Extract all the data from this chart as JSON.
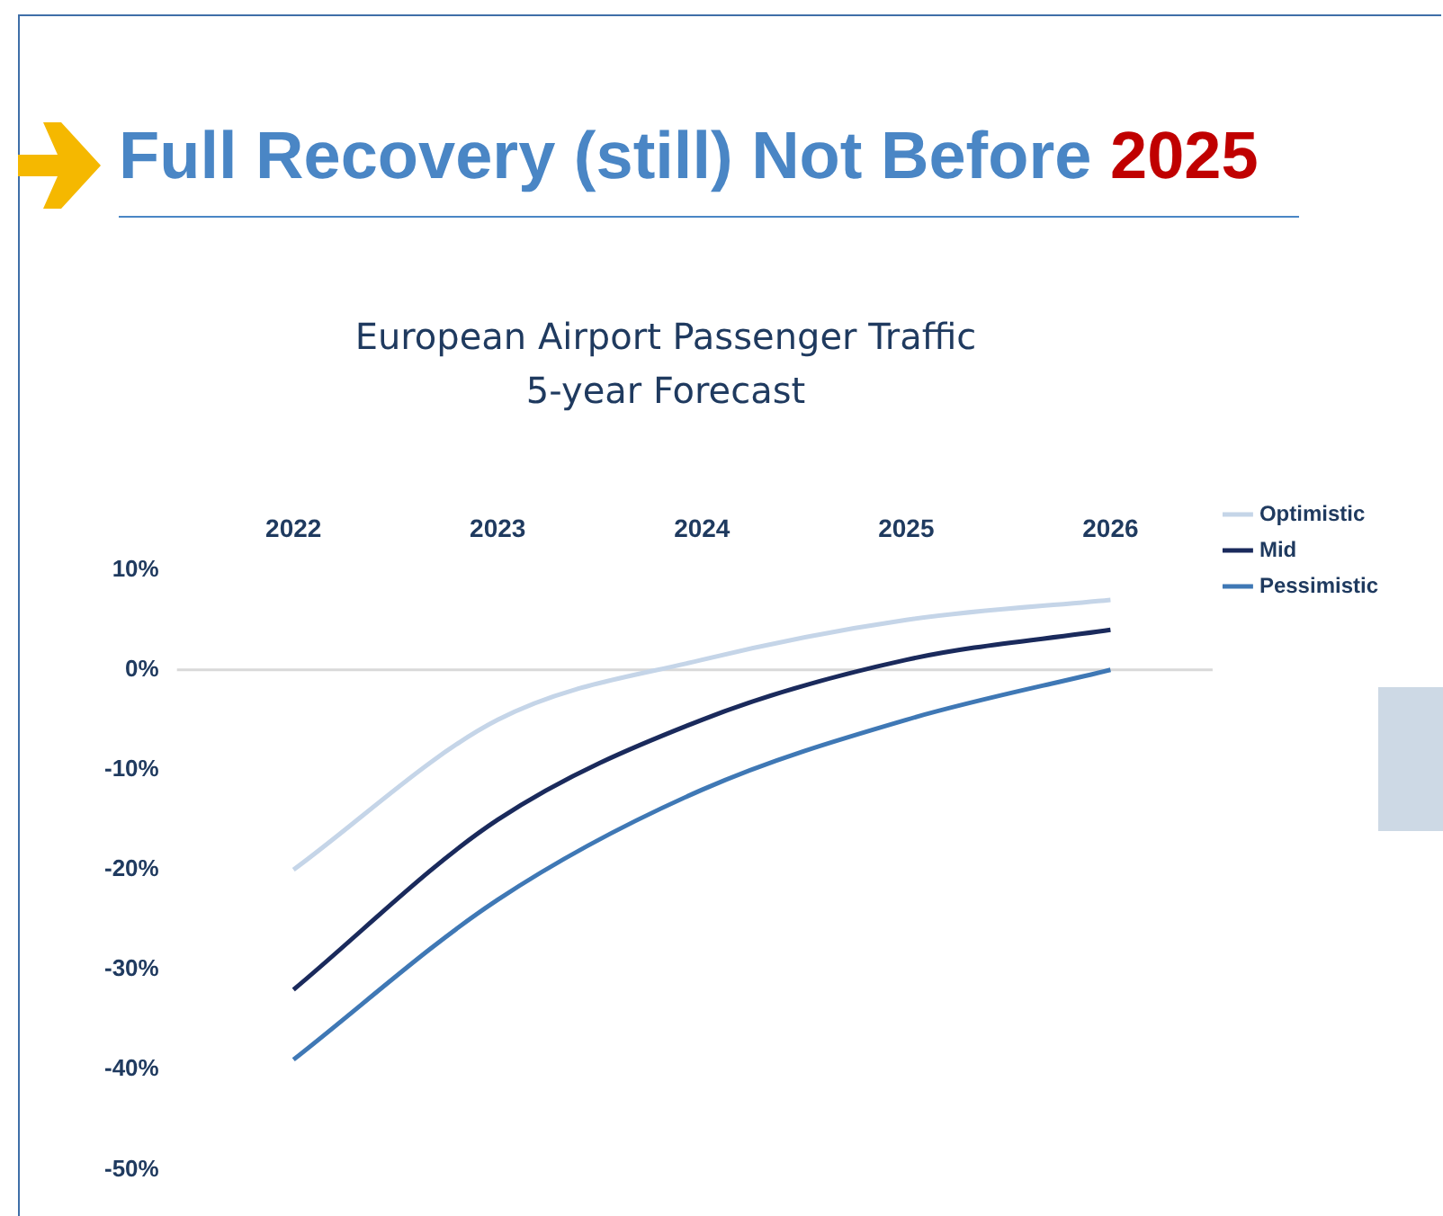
{
  "chart_data": {
    "type": "line",
    "title": "Full Recovery (still) Not Before 2025",
    "subtitle": "European Airport Passenger Traffic\n5-year Forecast",
    "categories": [
      "2022",
      "2023",
      "2024",
      "2025",
      "2026"
    ],
    "series": [
      {
        "name": "Optimistic",
        "color": "#c5d5e8",
        "values": [
          -20,
          -5,
          1,
          5,
          7
        ]
      },
      {
        "name": "Mid",
        "color": "#1a2a5c",
        "values": [
          -32,
          -15,
          -5,
          1,
          4
        ]
      },
      {
        "name": "Pessimistic",
        "color": "#3f78b5",
        "values": [
          -39,
          -23,
          -12,
          -5,
          0
        ]
      }
    ],
    "ylim": [
      -50,
      10
    ],
    "yticks": [
      {
        "value": 10,
        "label": "10%"
      },
      {
        "value": 0,
        "label": "0%"
      },
      {
        "value": -10,
        "label": "-10%"
      },
      {
        "value": -20,
        "label": "-20%"
      },
      {
        "value": -30,
        "label": "-30%"
      },
      {
        "value": -40,
        "label": "-40%"
      },
      {
        "value": -50,
        "label": "-50%"
      }
    ],
    "ref_lines": [
      {
        "axis": "y",
        "value": 0,
        "color": "#d9d9d9"
      }
    ],
    "grid": false,
    "legend": "top right",
    "marker": "none",
    "line_style": "solid"
  }
}
